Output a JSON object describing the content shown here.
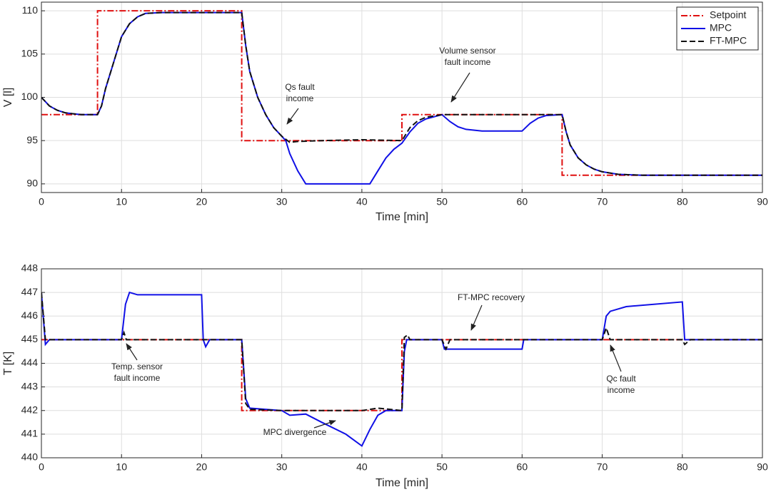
{
  "chart_data": [
    {
      "type": "line",
      "ylabel": "V [l]",
      "xlabel": "Time [min]",
      "xlim": [
        0,
        90
      ],
      "xticks": [
        0,
        10,
        20,
        30,
        40,
        50,
        60,
        70,
        80,
        90
      ],
      "ylim": [
        89,
        111
      ],
      "yticks": [
        90,
        95,
        100,
        105,
        110
      ],
      "grid": true,
      "legend": "upper right",
      "series": [
        {
          "name": "Setpoint",
          "color": "#e01010",
          "dash": "dashdot",
          "x": [
            0,
            7,
            7,
            25,
            25,
            45,
            45,
            65,
            65,
            90
          ],
          "values": [
            98,
            98,
            110,
            110,
            95,
            95,
            98,
            98,
            91,
            91
          ]
        },
        {
          "name": "MPC",
          "color": "#1010e6",
          "dash": "solid",
          "x": [
            0,
            1,
            2,
            3,
            4,
            5,
            7,
            7.5,
            8,
            9,
            10,
            11,
            12,
            13,
            15,
            20,
            25,
            25.5,
            26,
            27,
            28,
            29,
            30,
            30.5,
            31,
            32,
            33,
            35,
            41,
            42,
            43,
            44,
            45,
            46,
            47,
            48,
            50,
            51,
            52,
            53,
            55,
            60,
            61,
            62,
            63,
            65,
            65.5,
            66,
            67,
            68,
            69,
            70,
            72,
            75,
            90
          ],
          "values": [
            100,
            99,
            98.5,
            98.2,
            98.1,
            98,
            98,
            99,
            101,
            104,
            107,
            108.5,
            109.3,
            109.7,
            109.8,
            109.8,
            109.8,
            106,
            103,
            100,
            98,
            96.5,
            95.5,
            95,
            93.5,
            91.5,
            90,
            90,
            90,
            91.5,
            93,
            94,
            94.7,
            96,
            97,
            97.5,
            98,
            97.2,
            96.6,
            96.3,
            96.1,
            96.1,
            97,
            97.6,
            97.9,
            98,
            96,
            94.5,
            93,
            92.2,
            91.7,
            91.4,
            91.1,
            91,
            91
          ]
        },
        {
          "name": "FT-MPC",
          "color": "#111111",
          "dash": "dashed",
          "x": [
            0,
            1,
            2,
            3,
            4,
            5,
            7,
            7.5,
            8,
            9,
            10,
            11,
            12,
            13,
            15,
            20,
            25,
            25.5,
            26,
            27,
            28,
            29,
            30,
            31,
            32,
            35,
            40,
            45,
            46,
            47,
            48,
            50,
            55,
            65,
            65.5,
            66,
            67,
            68,
            69,
            70,
            72,
            75,
            90
          ],
          "values": [
            100,
            99,
            98.5,
            98.2,
            98.1,
            98,
            98,
            99,
            101,
            104,
            107,
            108.5,
            109.3,
            109.7,
            109.8,
            109.8,
            109.8,
            106,
            103,
            100,
            98,
            96.5,
            95.5,
            94.8,
            94.9,
            95,
            95.1,
            95,
            96.5,
            97.3,
            97.7,
            98,
            98,
            98,
            96,
            94.5,
            93,
            92.2,
            91.7,
            91.4,
            91.1,
            91,
            91
          ]
        }
      ],
      "annotations": [
        {
          "lines": [
            "Qs  fault",
            "income"
          ]
        },
        {
          "lines": [
            "Volume sensor",
            "fault income"
          ]
        }
      ]
    },
    {
      "type": "line",
      "ylabel": "T [K]",
      "xlabel": "Time [min]",
      "xlim": [
        0,
        90
      ],
      "xticks": [
        0,
        10,
        20,
        30,
        40,
        50,
        60,
        70,
        80,
        90
      ],
      "ylim": [
        440,
        448
      ],
      "yticks": [
        440,
        441,
        442,
        443,
        444,
        445,
        446,
        447,
        448
      ],
      "grid": true,
      "series": [
        {
          "name": "Setpoint",
          "color": "#e01010",
          "dash": "dashdot",
          "x": [
            0,
            25,
            25,
            45,
            45,
            90
          ],
          "values": [
            445,
            445,
            442,
            442,
            445,
            445
          ]
        },
        {
          "name": "MPC",
          "color": "#1010e6",
          "dash": "solid",
          "x": [
            0,
            0.5,
            1,
            10,
            10.5,
            11,
            12,
            20,
            20.2,
            20.5,
            21,
            25,
            25.5,
            26,
            30,
            31,
            33,
            35,
            38,
            40,
            41,
            42,
            43,
            45,
            45.3,
            45.6,
            50,
            50.3,
            60,
            60.2,
            70,
            70.5,
            71,
            73,
            80,
            80.3,
            90
          ],
          "values": [
            447,
            444.8,
            445,
            445,
            446.5,
            447,
            446.9,
            446.9,
            445,
            444.7,
            445,
            445,
            442.5,
            442.1,
            442,
            441.8,
            441.85,
            441.5,
            441,
            440.5,
            441.2,
            441.8,
            442,
            442,
            444.5,
            445,
            445,
            444.6,
            444.6,
            445,
            445,
            446,
            446.2,
            446.4,
            446.6,
            445,
            445
          ]
        },
        {
          "name": "FT-MPC",
          "color": "#111111",
          "dash": "dashed",
          "x": [
            0,
            0.5,
            10,
            10.3,
            10.6,
            25,
            25.5,
            26,
            30,
            40,
            42,
            45,
            45.3,
            45.7,
            46,
            50,
            50.5,
            51,
            70,
            70.5,
            71,
            80,
            80.3,
            81,
            90
          ],
          "values": [
            447,
            445,
            445,
            445.3,
            445,
            445,
            442.3,
            442.05,
            442,
            442,
            442.1,
            442,
            445.1,
            445.2,
            445,
            445,
            444.6,
            445,
            445,
            445.5,
            445,
            445,
            444.8,
            445,
            445
          ]
        }
      ],
      "annotations": [
        {
          "lines": [
            "FT-MPC recovery"
          ]
        },
        {
          "lines": [
            "Temp. sensor",
            "fault income"
          ]
        },
        {
          "lines": [
            "Qc  fault",
            "income"
          ]
        },
        {
          "lines": [
            "MPC divergence"
          ]
        }
      ]
    }
  ]
}
